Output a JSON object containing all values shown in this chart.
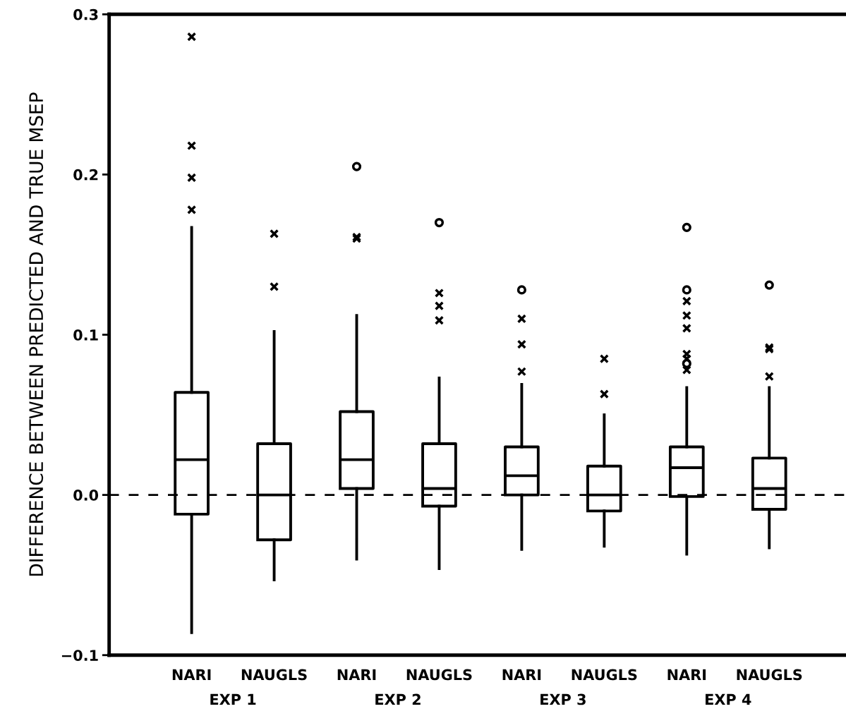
{
  "chart_data": {
    "type": "box",
    "ylabel": "DIFFERENCE BETWEEN PREDICTED AND TRUE MSEP",
    "categories": [
      "NARI",
      "NAUGLS",
      "NARI",
      "NAUGLS",
      "NARI",
      "NAUGLS",
      "NARI",
      "NAUGLS"
    ],
    "annotations": [
      "EXP 1",
      "EXP 2",
      "EXP 3",
      "EXP 4"
    ],
    "ylim": [
      -0.1,
      0.3
    ],
    "yticks": [
      {
        "value": -0.1,
        "label": "−0.1"
      },
      {
        "value": 0.0,
        "label": "0.0"
      },
      {
        "value": 0.1,
        "label": "0.1"
      },
      {
        "value": 0.2,
        "label": "0.2"
      },
      {
        "value": 0.3,
        "label": "0.3"
      }
    ],
    "grid": false,
    "legend": false,
    "marker": "cross",
    "ref_lines": [
      {
        "axis": "y",
        "value": 0.0,
        "line_style": "dashed",
        "color": "#000000"
      }
    ],
    "series": [
      {
        "color": "#000000",
        "boxes": [
          {
            "low": -0.086,
            "q1": -0.012,
            "median": 0.022,
            "q3": 0.064,
            "high": 0.167,
            "outliers": [
              0.286,
              0.218,
              0.198,
              0.178
            ]
          },
          {
            "low": -0.053,
            "q1": -0.028,
            "median": 0.0,
            "q3": 0.032,
            "high": 0.102,
            "outliers": [
              0.163,
              0.13
            ]
          },
          {
            "low": -0.04,
            "q1": 0.004,
            "median": 0.022,
            "q3": 0.052,
            "high": 0.112,
            "outliers": [
              0.161,
              0.16
            ]
          },
          {
            "low": -0.046,
            "q1": -0.007,
            "median": 0.004,
            "q3": 0.032,
            "high": 0.073,
            "outliers": [
              0.126,
              0.118,
              0.109
            ]
          },
          {
            "low": -0.034,
            "q1": 0.0,
            "median": 0.012,
            "q3": 0.03,
            "high": 0.069,
            "outliers": [
              0.11,
              0.094,
              0.077
            ]
          },
          {
            "low": -0.032,
            "q1": -0.01,
            "median": 0.0,
            "q3": 0.018,
            "high": 0.05,
            "outliers": [
              0.085,
              0.063
            ]
          },
          {
            "low": -0.037,
            "q1": -0.001,
            "median": 0.017,
            "q3": 0.03,
            "high": 0.067,
            "outliers": [
              0.121,
              0.112,
              0.104,
              0.088,
              0.085,
              0.078
            ]
          },
          {
            "low": -0.033,
            "q1": -0.009,
            "median": 0.004,
            "q3": 0.023,
            "high": 0.067,
            "outliers": [
              0.092,
              0.091,
              0.074
            ]
          }
        ]
      },
      {
        "type": "scatter",
        "marker": "circle",
        "color": "#000000",
        "values": [
          null,
          null,
          0.205,
          0.17,
          0.128,
          null,
          0.167,
          0.131
        ]
      },
      {
        "type": "scatter",
        "marker": "circle",
        "color": "#000000",
        "values": [
          null,
          null,
          null,
          null,
          null,
          null,
          0.128,
          null
        ]
      },
      {
        "type": "scatter",
        "marker": "circle",
        "color": "#000000",
        "values": [
          null,
          null,
          null,
          null,
          null,
          null,
          0.082,
          null
        ]
      }
    ]
  }
}
